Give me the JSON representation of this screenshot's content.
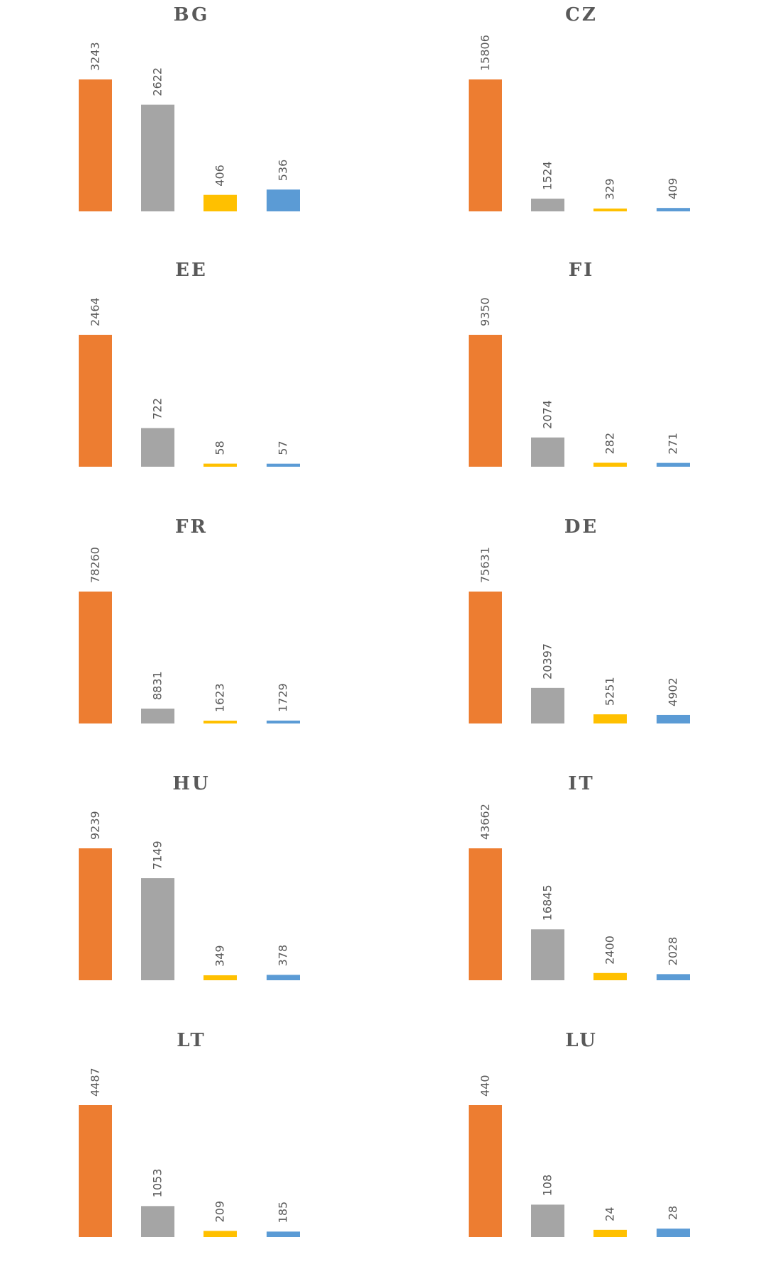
{
  "chart_data": [
    {
      "type": "bar",
      "title": "BG",
      "values": [
        3243,
        2622,
        406,
        536
      ],
      "ylim": [
        0,
        3243
      ]
    },
    {
      "type": "bar",
      "title": "CZ",
      "values": [
        15806,
        1524,
        329,
        409
      ],
      "ylim": [
        0,
        15806
      ]
    },
    {
      "type": "bar",
      "title": "EE",
      "values": [
        2464,
        722,
        58,
        57
      ],
      "ylim": [
        0,
        2464
      ]
    },
    {
      "type": "bar",
      "title": "FI",
      "values": [
        9350,
        2074,
        282,
        271
      ],
      "ylim": [
        0,
        9350
      ]
    },
    {
      "type": "bar",
      "title": "FR",
      "values": [
        78260,
        8831,
        1623,
        1729
      ],
      "ylim": [
        0,
        78260
      ]
    },
    {
      "type": "bar",
      "title": "DE",
      "values": [
        75631,
        20397,
        5251,
        4902
      ],
      "ylim": [
        0,
        75631
      ]
    },
    {
      "type": "bar",
      "title": "HU",
      "values": [
        9239,
        7149,
        349,
        378
      ],
      "ylim": [
        0,
        9239
      ]
    },
    {
      "type": "bar",
      "title": "IT",
      "values": [
        43662,
        16845,
        2400,
        2028
      ],
      "ylim": [
        0,
        43662
      ]
    },
    {
      "type": "bar",
      "title": "LT",
      "values": [
        4487,
        1053,
        209,
        185
      ],
      "ylim": [
        0,
        4487
      ]
    },
    {
      "type": "bar",
      "title": "LU",
      "values": [
        440,
        108,
        24,
        28
      ],
      "ylim": [
        0,
        440
      ]
    }
  ],
  "colors": [
    "#ed7d31",
    "#a5a5a5",
    "#ffc000",
    "#5b9bd5"
  ]
}
